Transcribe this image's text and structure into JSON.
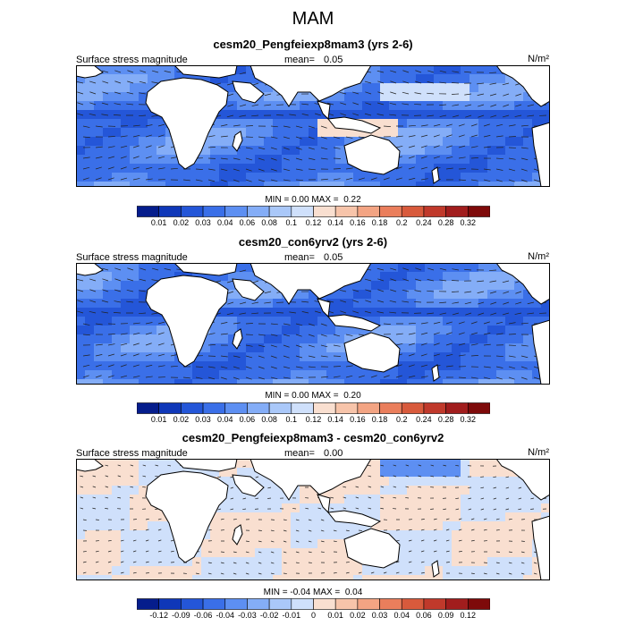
{
  "figure_title": "MAM",
  "colors": {
    "diverging": [
      "#051d8c",
      "#0f37b8",
      "#2456d8",
      "#3a6fe8",
      "#5d8ff2",
      "#84adf7",
      "#aac8f9",
      "#cfe0fb",
      "#f9dfd0",
      "#f7c4aa",
      "#f3a483",
      "#ea7e5c",
      "#d85a3c",
      "#c0392b",
      "#a11d1d",
      "#7e0a0a"
    ],
    "land": "#ffffff",
    "vector": "#222222"
  },
  "panels": [
    {
      "title": "cesm20_Pengfeiexp8mam3 (yrs 2-6)",
      "variable": "Surface stress magnitude",
      "mean_label": "mean=",
      "mean_value": "0.05",
      "units": "N/m²",
      "min_label": "MIN =",
      "min_value": "0.00",
      "max_label": "MAX =",
      "max_value": "0.22",
      "levels": [
        "0.01",
        "0.02",
        "0.03",
        "0.04",
        "0.06",
        "0.08",
        "0.1",
        "0.12",
        "0.14",
        "0.16",
        "0.18",
        "0.2",
        "0.24",
        "0.28",
        "0.32"
      ]
    },
    {
      "title": "cesm20_con6yrv2 (yrs 2-6)",
      "variable": "Surface stress magnitude",
      "mean_label": "mean=",
      "mean_value": "0.05",
      "units": "N/m²",
      "min_label": "MIN =",
      "min_value": "0.00",
      "max_label": "MAX =",
      "max_value": "0.20",
      "levels": [
        "0.01",
        "0.02",
        "0.03",
        "0.04",
        "0.06",
        "0.08",
        "0.1",
        "0.12",
        "0.14",
        "0.16",
        "0.18",
        "0.2",
        "0.24",
        "0.28",
        "0.32"
      ]
    },
    {
      "title": "cesm20_Pengfeiexp8mam3 - cesm20_con6yrv2",
      "variable": "Surface stress magnitude",
      "mean_label": "mean=",
      "mean_value": "0.00",
      "units": "N/m²",
      "min_label": "MIN =",
      "min_value": "-0.04",
      "max_label": "MAX =",
      "max_value": "0.04",
      "levels": [
        "-0.12",
        "-0.09",
        "-0.06",
        "-0.04",
        "-0.03",
        "-0.02",
        "-0.01",
        "0",
        "0.01",
        "0.02",
        "0.03",
        "0.04",
        "0.06",
        "0.09",
        "0.12"
      ]
    }
  ],
  "chart_data": [
    {
      "type": "heatmap",
      "title": "cesm20_Pengfeiexp8mam3 (yrs 2-6)",
      "variable": "Surface stress magnitude",
      "units": "N/m²",
      "mean": 0.05,
      "min": 0.0,
      "max": 0.22,
      "contour_levels": [
        0.01,
        0.02,
        0.03,
        0.04,
        0.06,
        0.08,
        0.1,
        0.12,
        0.14,
        0.16,
        0.18,
        0.2,
        0.24,
        0.28,
        0.32
      ],
      "overlay": "wind stress vectors",
      "grid": false
    },
    {
      "type": "heatmap",
      "title": "cesm20_con6yrv2 (yrs 2-6)",
      "variable": "Surface stress magnitude",
      "units": "N/m²",
      "mean": 0.05,
      "min": 0.0,
      "max": 0.2,
      "contour_levels": [
        0.01,
        0.02,
        0.03,
        0.04,
        0.06,
        0.08,
        0.1,
        0.12,
        0.14,
        0.16,
        0.18,
        0.2,
        0.24,
        0.28,
        0.32
      ],
      "overlay": "wind stress vectors",
      "grid": false
    },
    {
      "type": "heatmap",
      "title": "cesm20_Pengfeiexp8mam3 - cesm20_con6yrv2",
      "variable": "Surface stress magnitude",
      "units": "N/m²",
      "mean": 0.0,
      "min": -0.04,
      "max": 0.04,
      "contour_levels": [
        -0.12,
        -0.09,
        -0.06,
        -0.04,
        -0.03,
        -0.02,
        -0.01,
        0,
        0.01,
        0.02,
        0.03,
        0.04,
        0.06,
        0.09,
        0.12
      ],
      "overlay": "wind stress vectors",
      "grid": false
    }
  ]
}
